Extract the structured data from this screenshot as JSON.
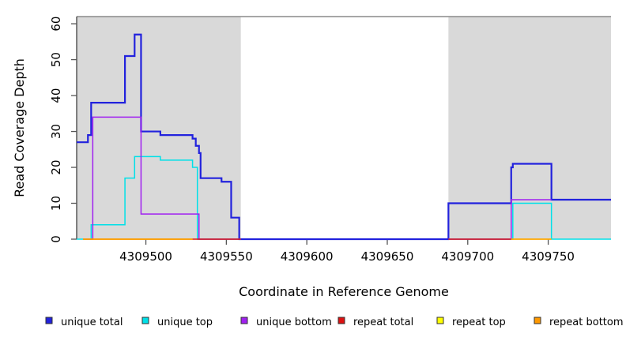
{
  "chart_data": {
    "type": "line",
    "subtype": "step-after",
    "title": "",
    "xlabel": "Coordinate in Reference Genome",
    "ylabel": "Read Coverage Depth",
    "xlim": [
      4309457,
      4309789
    ],
    "ylim": [
      0,
      62
    ],
    "x_ticks": [
      4309500,
      4309550,
      4309600,
      4309650,
      4309700,
      4309750
    ],
    "y_ticks": [
      0,
      10,
      20,
      30,
      40,
      50,
      60
    ],
    "grid": false,
    "legend_position": "bottom",
    "background_color": "#ffffff",
    "shaded_region_color": "#d9d9d9",
    "background_regions": [
      {
        "name": "left-shaded-region",
        "x0": 4309457,
        "x1": 4309559
      },
      {
        "name": "right-shaded-region",
        "x0": 4309688,
        "x1": 4309789
      }
    ],
    "series": [
      {
        "name": "unique total",
        "color": "#2222dd",
        "line_width": 2.2,
        "steps": [
          [
            4309457,
            27
          ],
          [
            4309464,
            29
          ],
          [
            4309466,
            38
          ],
          [
            4309487,
            51
          ],
          [
            4309493,
            57
          ],
          [
            4309497,
            30
          ],
          [
            4309509,
            29
          ],
          [
            4309529,
            28
          ],
          [
            4309531,
            26
          ],
          [
            4309533,
            24
          ],
          [
            4309534,
            17
          ],
          [
            4309547,
            16
          ],
          [
            4309553,
            6
          ],
          [
            4309558,
            0
          ],
          [
            4309688,
            10
          ],
          [
            4309727,
            20
          ],
          [
            4309728,
            21
          ],
          [
            4309752,
            11
          ],
          [
            4309789,
            null
          ]
        ]
      },
      {
        "name": "unique top",
        "color": "#00e0e8",
        "line_width": 1.5,
        "steps": [
          [
            4309457,
            0
          ],
          [
            4309466,
            4
          ],
          [
            4309487,
            17
          ],
          [
            4309493,
            23
          ],
          [
            4309509,
            22
          ],
          [
            4309529,
            20
          ],
          [
            4309532,
            0
          ],
          [
            4309559,
            null
          ],
          [
            4309688,
            0
          ],
          [
            4309728,
            10
          ],
          [
            4309752,
            0
          ],
          [
            4309789,
            null
          ]
        ]
      },
      {
        "name": "unique bottom",
        "color": "#a020f0",
        "line_width": 1.5,
        "steps": [
          [
            4309461,
            0
          ],
          [
            4309467,
            34
          ],
          [
            4309497,
            7
          ],
          [
            4309533,
            0
          ],
          [
            4309559,
            null
          ],
          [
            4309688,
            0
          ],
          [
            4309727,
            11
          ],
          [
            4309752,
            null
          ]
        ]
      },
      {
        "name": "repeat total",
        "color": "#dd1111",
        "line_width": 1.5,
        "steps": [
          [
            4309461,
            0
          ],
          [
            4309559,
            null
          ],
          [
            4309688,
            0
          ],
          [
            4309727,
            null
          ]
        ]
      },
      {
        "name": "repeat top",
        "color": "#ffff00",
        "line_width": 1.5,
        "steps": [
          [
            4309461,
            0
          ],
          [
            4309529,
            null
          ],
          [
            4309727,
            0
          ],
          [
            4309752,
            null
          ]
        ]
      },
      {
        "name": "repeat bottom",
        "color": "#ff9900",
        "line_width": 1.5,
        "steps": [
          [
            4309461,
            0
          ],
          [
            4309529,
            null
          ],
          [
            4309727,
            0
          ],
          [
            4309752,
            null
          ]
        ]
      }
    ]
  },
  "legend": {
    "items": [
      {
        "label": "unique total",
        "color": "#2222dd"
      },
      {
        "label": "unique top",
        "color": "#00e0e8"
      },
      {
        "label": "unique bottom",
        "color": "#a020f0"
      },
      {
        "label": "repeat total",
        "color": "#dd1111"
      },
      {
        "label": "repeat top",
        "color": "#ffff00"
      },
      {
        "label": "repeat bottom",
        "color": "#ff9900"
      }
    ]
  }
}
